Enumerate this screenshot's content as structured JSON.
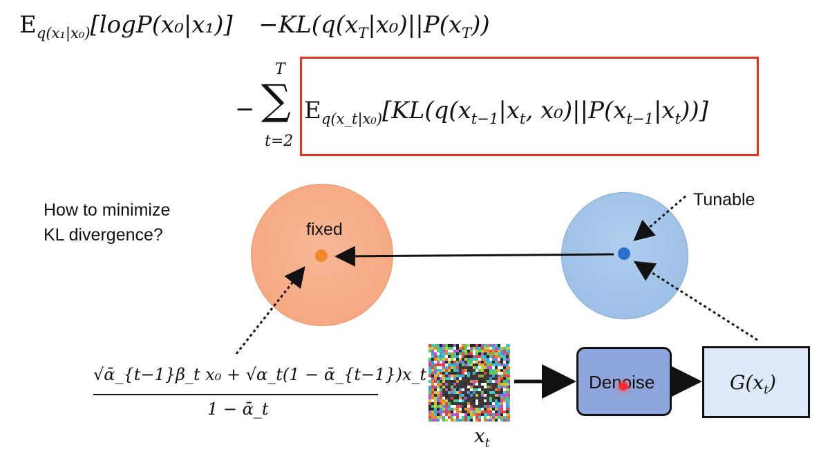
{
  "equation_line1": {
    "E": "E",
    "sub": "q(x₁|x₀)",
    "body": "[logP(x₀|x₁)]",
    "kl": "−KL(q(x",
    "klT": "T",
    "kl2": "|x₀)||P(x",
    "kl3": "))"
  },
  "equation_line2": {
    "minus": "−",
    "sum": "∑",
    "upper": "T",
    "lower": "t=2",
    "E": "E",
    "sub": "q(x_t|x₀)",
    "body": "[KL(q(x",
    "body_sub1": "t−1",
    "body2": "|x",
    "body_sub2": "t",
    "body3": ", x₀)||P(x",
    "body_sub3": "t−1",
    "body4": "|x",
    "body_sub4": "t",
    "body5": "))]"
  },
  "question": {
    "line1": "How to minimize",
    "line2": "KL divergence?"
  },
  "fixed_label": "fixed",
  "tunable_label": "Tunable",
  "formula": {
    "numerator": "√ᾱ_{t−1}β_t x₀ + √α_t(1 − ᾱ_{t−1})x_t",
    "denominator": "1 − ᾱ_t"
  },
  "denoise_label": "Denoise",
  "g_label": "G(x",
  "g_sub": "t",
  "xt_label": "x",
  "xt_sub": "t",
  "colors": {
    "accent_red": "#e0341f",
    "orange_circle": "#f5a77c",
    "orange_dot": "#f08a2a",
    "blue_circle": "#9dc0e6",
    "blue_dot": "#2e6fce",
    "denoise_fill": "#8fa6dd",
    "g_fill": "#dde9f8"
  }
}
